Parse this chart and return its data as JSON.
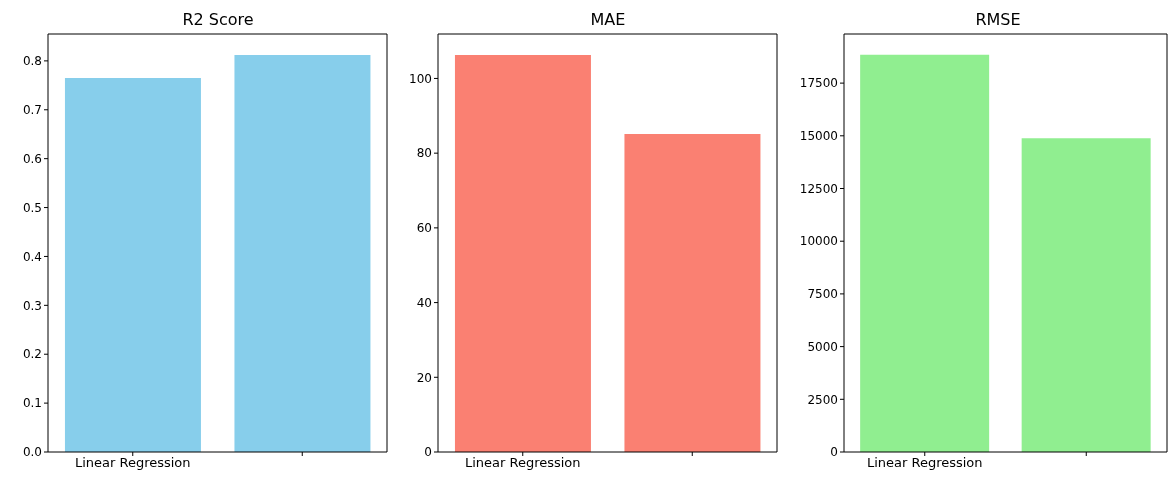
{
  "chart_data": [
    {
      "type": "bar",
      "title": "R2 Score",
      "categories": [
        "Linear Regression",
        null
      ],
      "values": [
        0.765,
        0.812
      ],
      "color": "#87ceeb",
      "ylim": [
        0,
        0.855
      ],
      "yticks": [
        {
          "value": 0,
          "label": "0.0"
        },
        0.1,
        0.2,
        0.3,
        0.4,
        0.5,
        0.6,
        0.7,
        0.8
      ],
      "grid": false
    },
    {
      "type": "bar",
      "title": "MAE",
      "categories": [
        "Linear Regression",
        null
      ],
      "values": [
        106.3,
        85.1
      ],
      "color": "#fa8072",
      "ylim": [
        0,
        111.9
      ],
      "yticks": [
        0,
        20,
        40,
        60,
        80,
        100
      ],
      "grid": false
    },
    {
      "type": "bar",
      "title": "RMSE",
      "categories": [
        "Linear Regression",
        null
      ],
      "values": [
        18850,
        14890
      ],
      "color": "#90ee90",
      "ylim": [
        0,
        19830
      ],
      "yticks": [
        0,
        2500,
        5000,
        7500,
        10000,
        12500,
        15000,
        17500
      ],
      "grid": false
    }
  ]
}
